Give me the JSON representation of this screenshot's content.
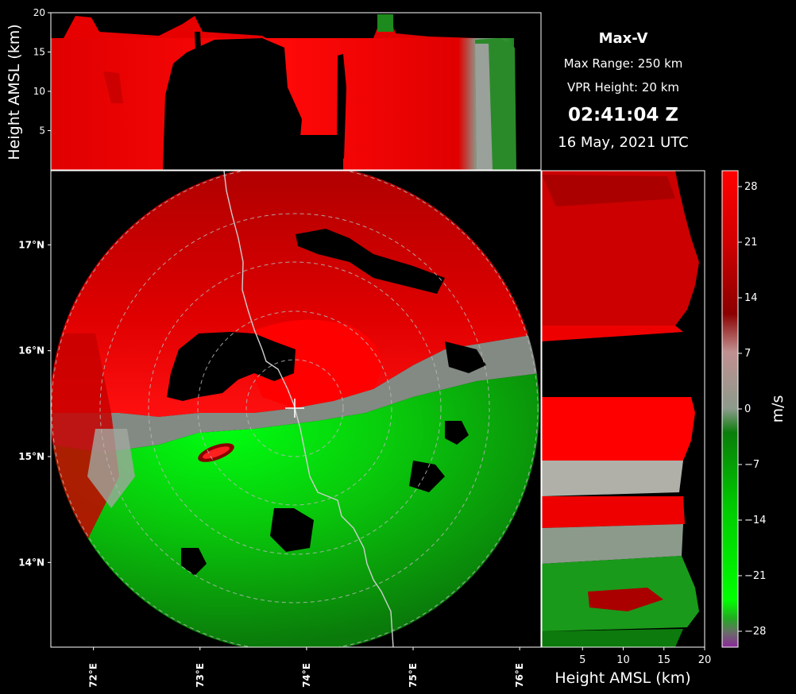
{
  "product": {
    "title": "Max-V",
    "max_range": "Max Range: 250 km",
    "vpr_height": "VPR Height: 20 km",
    "time": "02:41:04 Z",
    "date": "16 May, 2021 UTC"
  },
  "chart_data": [
    {
      "type": "heatmap",
      "panel": "top vertical profile (longitude vs height)",
      "xlabel": "",
      "ylabel": "Height AMSL (km)",
      "xlim": [
        71.6,
        76.2
      ],
      "ylim": [
        0,
        20
      ],
      "yticks": [
        5,
        10,
        15,
        20
      ],
      "ytick_labels": [
        "5",
        "10",
        "15",
        "20"
      ],
      "xtick_labels": []
    },
    {
      "type": "heatmap",
      "panel": "main plan view (Max-V radial velocity)",
      "xlabel": "",
      "ylabel": "",
      "xlim": [
        71.6,
        76.2
      ],
      "ylim": [
        13.2,
        17.7
      ],
      "xticks": [
        72,
        73,
        74,
        75,
        76
      ],
      "xtick_labels": [
        "72°E",
        "73°E",
        "74°E",
        "75°E",
        "76°E"
      ],
      "yticks": [
        14,
        15,
        16,
        17
      ],
      "ytick_labels": [
        "14°N",
        "15°N",
        "16°N",
        "17°N"
      ],
      "radar_center": {
        "lon": 73.85,
        "lat": 15.5
      },
      "range_rings_km": [
        50,
        100,
        150,
        200,
        250
      ]
    },
    {
      "type": "heatmap",
      "panel": "right vertical profile (height vs latitude)",
      "xlabel": "Height AMSL (km)",
      "ylabel": "",
      "xlim": [
        0,
        20
      ],
      "xticks": [
        5,
        10,
        15,
        20
      ],
      "xtick_labels": [
        "5",
        "10",
        "15",
        "20"
      ],
      "ylim": [
        13.2,
        17.7
      ]
    },
    {
      "type": "heatmap",
      "panel": "colorbar",
      "label": "m/s",
      "range": [
        -30,
        30
      ],
      "ticks": [
        -28,
        -21,
        -14,
        -7,
        0,
        7,
        14,
        21,
        28
      ],
      "tick_labels": [
        "−28",
        "−21",
        "−14",
        "−7",
        "0",
        "7",
        "14",
        "21",
        "28"
      ],
      "colors": {
        "lowest": "#8b2a9a",
        "strong_green": "#00ff00",
        "green": "#0a7d0a",
        "grey": "#8c9a8c",
        "dark_red": "#8b0000",
        "red": "#ff0000"
      }
    }
  ]
}
